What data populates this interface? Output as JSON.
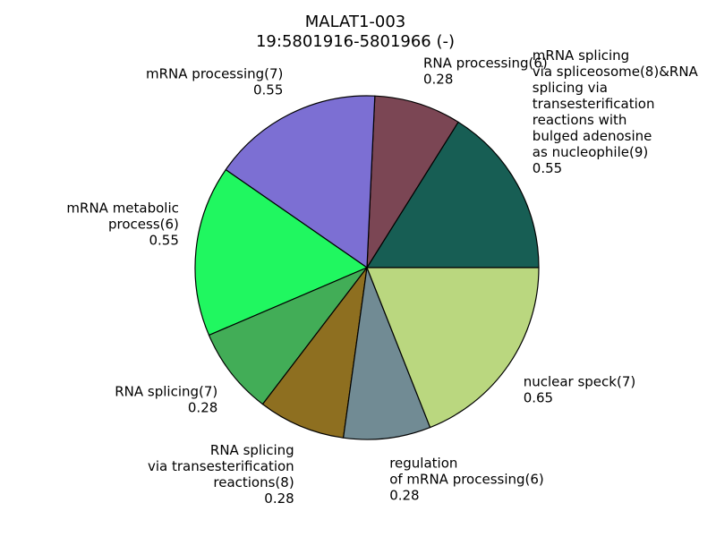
{
  "chart_data": {
    "type": "pie",
    "title": "MALAT1-003",
    "subtitle": "19:5801916-5801966 (-)",
    "slices": [
      {
        "label_lines": [
          "mRNA splicing",
          "via spliceosome(8)&RNA",
          "splicing via",
          "transesterification",
          "reactions with",
          "bulged adenosine",
          "as nucleophile(9)"
        ],
        "value": 0.55,
        "value_text": "0.55",
        "color": "#175e54"
      },
      {
        "label_lines": [
          "RNA processing(6)"
        ],
        "value": 0.28,
        "value_text": "0.28",
        "color": "#7b4654"
      },
      {
        "label_lines": [
          "mRNA processing(7)"
        ],
        "value": 0.55,
        "value_text": "0.55",
        "color": "#7c6fd3"
      },
      {
        "label_lines": [
          "mRNA metabolic",
          "process(6)"
        ],
        "value": 0.55,
        "value_text": "0.55",
        "color": "#20f760"
      },
      {
        "label_lines": [
          "RNA splicing(7)"
        ],
        "value": 0.28,
        "value_text": "0.28",
        "color": "#42ad57"
      },
      {
        "label_lines": [
          "RNA splicing",
          "via transesterification",
          "reactions(8)"
        ],
        "value": 0.28,
        "value_text": "0.28",
        "color": "#8e6f20"
      },
      {
        "label_lines": [
          "regulation",
          "of mRNA processing(6)"
        ],
        "value": 0.28,
        "value_text": "0.28",
        "color": "#718b94"
      },
      {
        "label_lines": [
          "nuclear speck(7)"
        ],
        "value": 0.65,
        "value_text": "0.65",
        "color": "#bad77f"
      }
    ]
  }
}
